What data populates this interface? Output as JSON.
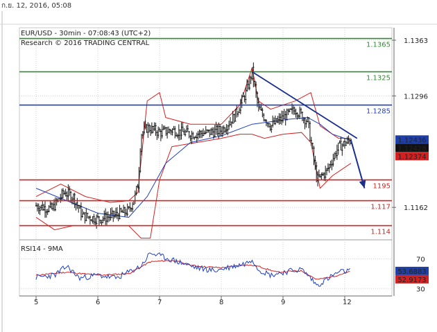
{
  "header": {
    "timestamp": "ก.ย. 12, 2016, 05:08"
  },
  "chart_data": {
    "type": "candlestick",
    "title": "EUR/USD - 30min - 07:08:43 (UTC+2)",
    "subtitle": "Research © 2016 TRADING CENTRAL",
    "grid": true,
    "ylim": [
      1.1128,
      1.1378
    ],
    "y_ticks": [
      {
        "value": 1.1363,
        "label": "1.1363"
      },
      {
        "value": 1.1296,
        "label": "1.1296"
      },
      {
        "value": 1.1162,
        "label": "1.1162"
      }
    ],
    "x_ticks": [
      {
        "x": 0,
        "label": "5"
      },
      {
        "x": 1,
        "label": "6"
      },
      {
        "x": 2,
        "label": "7"
      },
      {
        "x": 3,
        "label": "8"
      },
      {
        "x": 4,
        "label": "9"
      },
      {
        "x": 5,
        "label": "12"
      }
    ],
    "levels": [
      {
        "value": 1.1365,
        "label": "1.1365",
        "color": "#2e8b2e"
      },
      {
        "value": 1.1325,
        "label": "1.1325",
        "color": "#2e8b2e"
      },
      {
        "value": 1.1285,
        "label": "1.1285",
        "color": "#1f3fbf"
      },
      {
        "value": 1.1195,
        "label": "1195",
        "color": "#d42020"
      },
      {
        "value": 1.117,
        "label": "1.117",
        "color": "#d42020"
      },
      {
        "value": 1.114,
        "label": "1.114",
        "color": "#d42020"
      }
    ],
    "price_badges": [
      {
        "value": 1.12436,
        "label": "1.12436",
        "color": "#1f3fa8"
      },
      {
        "value": 1.12428,
        "label": "1.12428",
        "color": "#111111"
      },
      {
        "value": 1.12374,
        "label": "1.12374",
        "color": "#d42020"
      }
    ],
    "price_keypoints": [
      [
        0.0,
        1.1164
      ],
      [
        0.25,
        1.116
      ],
      [
        0.45,
        1.118
      ],
      [
        0.6,
        1.1175
      ],
      [
        0.75,
        1.1152
      ],
      [
        1.0,
        1.1148
      ],
      [
        1.25,
        1.1152
      ],
      [
        1.5,
        1.1158
      ],
      [
        1.6,
        1.1175
      ],
      [
        1.65,
        1.119
      ],
      [
        1.7,
        1.125
      ],
      [
        1.8,
        1.1258
      ],
      [
        2.0,
        1.1252
      ],
      [
        2.2,
        1.1255
      ],
      [
        2.5,
        1.125
      ],
      [
        2.8,
        1.1252
      ],
      [
        3.0,
        1.1255
      ],
      [
        3.2,
        1.127
      ],
      [
        3.4,
        1.13
      ],
      [
        3.5,
        1.1325
      ],
      [
        3.6,
        1.128
      ],
      [
        3.8,
        1.126
      ],
      [
        4.0,
        1.127
      ],
      [
        4.2,
        1.128
      ],
      [
        4.4,
        1.1265
      ],
      [
        4.55,
        1.1195
      ],
      [
        4.7,
        1.1205
      ],
      [
        4.9,
        1.1235
      ],
      [
        5.1,
        1.1243
      ]
    ],
    "ma": [
      [
        0.0,
        1.1185
      ],
      [
        0.5,
        1.117
      ],
      [
        1.0,
        1.1155
      ],
      [
        1.5,
        1.115
      ],
      [
        1.8,
        1.1175
      ],
      [
        2.1,
        1.1215
      ],
      [
        2.5,
        1.124
      ],
      [
        3.0,
        1.1248
      ],
      [
        3.5,
        1.1262
      ],
      [
        3.8,
        1.1265
      ],
      [
        4.1,
        1.1268
      ],
      [
        4.4,
        1.127
      ],
      [
        4.6,
        1.1262
      ],
      [
        4.8,
        1.125
      ],
      [
        5.0,
        1.1245
      ],
      [
        5.1,
        1.1243
      ]
    ],
    "bollinger_upper": [
      [
        0.0,
        1.1175
      ],
      [
        0.4,
        1.119
      ],
      [
        0.8,
        1.1175
      ],
      [
        1.2,
        1.1168
      ],
      [
        1.5,
        1.117
      ],
      [
        1.65,
        1.118
      ],
      [
        1.8,
        1.129
      ],
      [
        2.0,
        1.13
      ],
      [
        2.1,
        1.127
      ],
      [
        2.5,
        1.1262
      ],
      [
        3.0,
        1.1262
      ],
      [
        3.3,
        1.1285
      ],
      [
        3.5,
        1.133
      ],
      [
        3.6,
        1.129
      ],
      [
        3.8,
        1.128
      ],
      [
        4.2,
        1.129
      ],
      [
        4.45,
        1.13
      ],
      [
        4.6,
        1.126
      ],
      [
        4.9,
        1.1245
      ],
      [
        5.1,
        1.1245
      ]
    ],
    "bollinger_lower": [
      [
        0.0,
        1.115
      ],
      [
        0.3,
        1.1135
      ],
      [
        0.6,
        1.114
      ],
      [
        1.0,
        1.114
      ],
      [
        1.5,
        1.114
      ],
      [
        1.7,
        1.1125
      ],
      [
        1.85,
        1.1125
      ],
      [
        2.0,
        1.1195
      ],
      [
        2.2,
        1.1235
      ],
      [
        2.6,
        1.124
      ],
      [
        3.0,
        1.1245
      ],
      [
        3.3,
        1.125
      ],
      [
        3.5,
        1.125
      ],
      [
        3.7,
        1.1245
      ],
      [
        4.0,
        1.125
      ],
      [
        4.3,
        1.1252
      ],
      [
        4.45,
        1.124
      ],
      [
        4.6,
        1.1185
      ],
      [
        4.8,
        1.12
      ],
      [
        5.1,
        1.1215
      ]
    ],
    "trendline": [
      [
        3.5,
        1.1325
      ],
      [
        5.2,
        1.1245
      ]
    ],
    "forecast_arrow": [
      [
        5.1,
        1.1243
      ],
      [
        5.32,
        1.1185
      ]
    ],
    "rsi": {
      "label": "RSI14 - 9MA",
      "ylim": [
        20,
        90
      ],
      "y_ticks": [
        {
          "value": 70,
          "label": "70"
        },
        {
          "value": 30,
          "label": "30"
        }
      ],
      "rsi_keypoints": [
        [
          0.0,
          45
        ],
        [
          0.3,
          48
        ],
        [
          0.5,
          60
        ],
        [
          0.7,
          44
        ],
        [
          1.0,
          48
        ],
        [
          1.3,
          44
        ],
        [
          1.5,
          52
        ],
        [
          1.7,
          60
        ],
        [
          1.85,
          78
        ],
        [
          2.0,
          74
        ],
        [
          2.3,
          66
        ],
        [
          2.6,
          58
        ],
        [
          2.9,
          54
        ],
        [
          3.2,
          60
        ],
        [
          3.4,
          64
        ],
        [
          3.5,
          70
        ],
        [
          3.6,
          56
        ],
        [
          3.8,
          48
        ],
        [
          4.0,
          52
        ],
        [
          4.3,
          56
        ],
        [
          4.45,
          44
        ],
        [
          4.55,
          34
        ],
        [
          4.7,
          42
        ],
        [
          4.9,
          52
        ],
        [
          5.1,
          54
        ]
      ],
      "ma_keypoints": [
        [
          0.0,
          48
        ],
        [
          0.5,
          52
        ],
        [
          1.0,
          48
        ],
        [
          1.5,
          50
        ],
        [
          1.85,
          66
        ],
        [
          2.2,
          68
        ],
        [
          2.6,
          60
        ],
        [
          3.0,
          58
        ],
        [
          3.4,
          62
        ],
        [
          3.6,
          60
        ],
        [
          3.9,
          52
        ],
        [
          4.3,
          54
        ],
        [
          4.55,
          42
        ],
        [
          4.8,
          46
        ],
        [
          5.1,
          53
        ]
      ],
      "badges": [
        {
          "value": 53.6883,
          "label": "53.6883",
          "color": "#1f3fa8"
        },
        {
          "value": 52.9173,
          "label": "52.9173",
          "color": "#d42020"
        }
      ]
    }
  }
}
